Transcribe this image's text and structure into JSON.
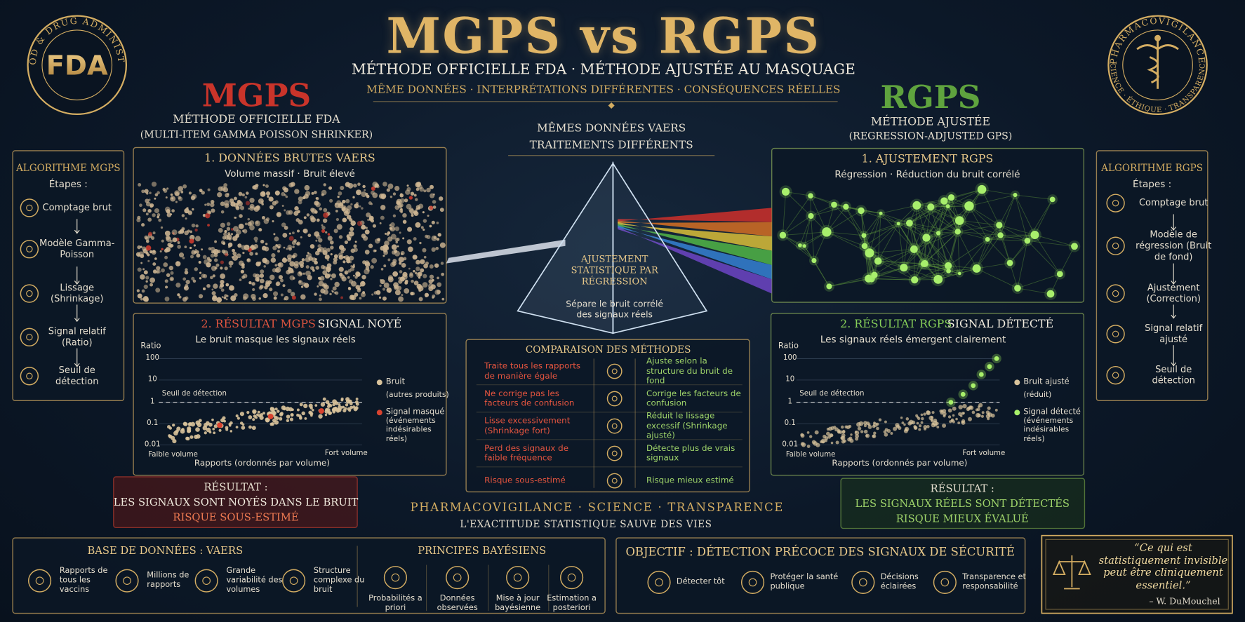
{
  "header": {
    "title": "MGPS vs RGPS",
    "subtitle": "MÉTHODE OFFICIELLE FDA · MÉTHODE AJUSTÉE AU MASQUAGE",
    "tagline": "MÊME DONNÉES · INTERPRÉTATIONS DIFFÉRENTES · CONSÉQUENCES RÉELLES"
  },
  "seals": {
    "fda_ring": "U.S. FOOD & DRUG ADMINISTRATION",
    "fda_logo": "FDA",
    "pv_ring_top": "PHARMACOVIGILANCE",
    "pv_ring_bottom": "SCIENCE · ÉTHIQUE · TRANSPARENCE"
  },
  "mgps": {
    "name": "MGPS",
    "method": "MÉTHODE OFFICIELLE FDA",
    "full_name": "(MULTI-ITEM GAMMA POISSON SHRINKER)",
    "algorithm": {
      "title": "ALGORITHME MGPS",
      "steps_label": "Étapes :",
      "steps": [
        "Comptage brut",
        "Modèle Gamma-Poisson",
        "Lissage (Shrinkage)",
        "Signal relatif (Ratio)",
        "Seuil de détection"
      ]
    },
    "data_panel": {
      "title": "1. DONNÉES BRUTES VAERS",
      "subtitle": "Volume massif · Bruit élevé"
    },
    "result_panel": {
      "title_prefix": "2. RÉSULTAT MGPS :",
      "title_suffix": "SIGNAL NOYÉ",
      "subtitle": "Le bruit masque les signaux réels",
      "y_label": "Ratio",
      "yticks": [
        "100",
        "10",
        "1",
        "0.1",
        "0.01"
      ],
      "threshold": "Seuil de détection",
      "x_low": "Faible volume",
      "x_high": "Fort volume",
      "x_label": "Rapports (ordonnés par volume)",
      "legend": [
        {
          "name": "Bruit",
          "note": "(autres produits)"
        },
        {
          "name": "Signal masqué",
          "note": "(événements indésirables réels)"
        }
      ]
    },
    "result": {
      "label": "RÉSULTAT :",
      "lines": [
        "LES SIGNAUX SONT NOYÉS DANS LE BRUIT",
        "RISQUE SOUS-ESTIMÉ"
      ]
    }
  },
  "rgps": {
    "name": "RGPS",
    "method": "MÉTHODE AJUSTÉE",
    "full_name": "(REGRESSION-ADJUSTED GPS)",
    "algorithm": {
      "title": "ALGORITHME RGPS",
      "steps_label": "Étapes :",
      "steps": [
        "Comptage brut",
        "Modèle de régression (Bruit de fond)",
        "Ajustement (Correction)",
        "Signal relatif ajusté",
        "Seuil de détection"
      ]
    },
    "data_panel": {
      "title": "1. AJUSTEMENT RGPS",
      "subtitle": "Régression · Réduction du bruit corrélé"
    },
    "result_panel": {
      "title_prefix": "2. RÉSULTAT RGPS :",
      "title_suffix": "SIGNAL DÉTECTÉ",
      "subtitle": "Les signaux réels émergent clairement",
      "y_label": "Ratio",
      "yticks": [
        "100",
        "10",
        "1",
        "0.1",
        "0.01"
      ],
      "threshold": "Seuil de détection",
      "x_low": "Faible volume",
      "x_high": "Fort volume",
      "x_label": "Rapports (ordonnés par volume)",
      "legend": [
        {
          "name": "Bruit ajusté",
          "note": "(réduit)"
        },
        {
          "name": "Signal détecté",
          "note": "(événements indésirables réels)"
        }
      ]
    },
    "result": {
      "label": "RÉSULTAT :",
      "lines": [
        "LES SIGNAUX RÉELS SONT DÉTECTÉS",
        "RISQUE MIEUX ÉVALUÉ"
      ]
    }
  },
  "center": {
    "heading": [
      "MÊMES DONNÉES VAERS",
      "TRAITEMENTS DIFFÉRENTS"
    ],
    "prism_title": "AJUSTEMENT STATISTIQUE PAR RÉGRESSION",
    "prism_note": "Sépare le bruit corrélé des signaux réels",
    "comparison": {
      "title": "COMPARAISON DES MÉTHODES",
      "rows": [
        [
          "Traite tous les rapports de manière égale",
          "Ajuste selon la structure du bruit de fond"
        ],
        [
          "Ne corrige pas les facteurs de confusion",
          "Corrige les facteurs de confusion"
        ],
        [
          "Lisse excessivement (Shrinkage fort)",
          "Réduit le lissage excessif (Shrinkage ajusté)"
        ],
        [
          "Perd des signaux de faible fréquence",
          "Détecte plus de vrais signaux"
        ],
        [
          "Risque sous-estimé",
          "Risque mieux estimé"
        ]
      ]
    },
    "motto": "PHARMACOVIGILANCE · SCIENCE · TRANSPARENCE",
    "slogan": "L'EXACTITUDE STATISTIQUE SAUVE DES VIES"
  },
  "bottom": {
    "vaers": {
      "title": "BASE DE DONNÉES : VAERS",
      "items": [
        "Rapports de tous les vaccins",
        "Millions de rapports",
        "Grande variabilité des volumes",
        "Structure complexe du bruit"
      ]
    },
    "bayes": {
      "title": "PRINCIPES BAYÉSIENS",
      "items": [
        "Probabilités a priori",
        "Données observées",
        "Mise à jour bayésienne",
        "Estimation a posteriori"
      ]
    },
    "objective": {
      "title": "OBJECTIF : DÉTECTION PRÉCOCE DES SIGNAUX DE SÉCURITÉ",
      "items": [
        "Détecter tôt",
        "Protéger la santé publique",
        "Décisions éclairées",
        "Transparence et responsabilité"
      ]
    },
    "quote": {
      "text": "“Ce qui est statistiquement invisible peut être cliniquement essentiel.”",
      "author": "– W. DuMouchel"
    }
  }
}
